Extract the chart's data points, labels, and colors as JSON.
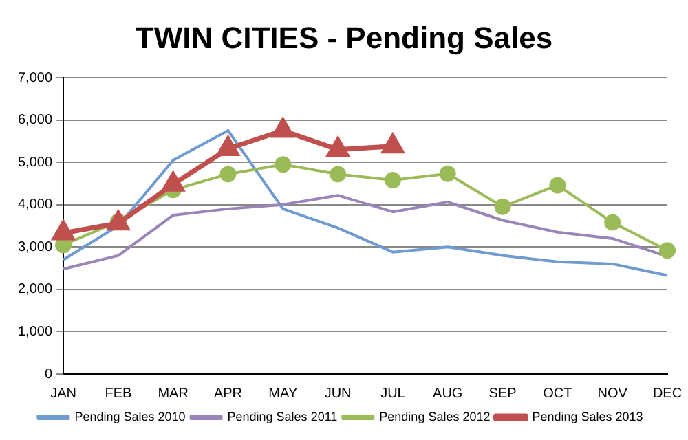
{
  "chart_data": {
    "type": "line",
    "title": "TWIN CITIES - Pending Sales",
    "categories": [
      "JAN",
      "FEB",
      "MAR",
      "APR",
      "MAY",
      "JUN",
      "JUL",
      "AUG",
      "SEP",
      "OCT",
      "NOV",
      "DEC"
    ],
    "series": [
      {
        "name": "Pending Sales 2010",
        "color": "#6f9bd1",
        "marker": "none",
        "values": [
          2700,
          3500,
          5050,
          5750,
          3900,
          3450,
          2880,
          3000,
          2800,
          2650,
          2600,
          2330
        ]
      },
      {
        "name": "Pending Sales 2011",
        "color": "#9b85b8",
        "marker": "none",
        "values": [
          2480,
          2800,
          3750,
          3900,
          4000,
          4220,
          3830,
          4060,
          3630,
          3350,
          3200,
          2780
        ]
      },
      {
        "name": "Pending Sales 2012",
        "color": "#9bbb59",
        "marker": "circle",
        "values": [
          3050,
          3600,
          4350,
          4720,
          4950,
          4720,
          4580,
          4730,
          3950,
          4460,
          3580,
          2920
        ]
      },
      {
        "name": "Pending Sales 2013",
        "color": "#c0504d",
        "marker": "triangle",
        "values": [
          3330,
          3560,
          4480,
          5320,
          5750,
          5300,
          5380,
          null,
          null,
          null,
          null,
          null
        ]
      }
    ],
    "ylim": [
      0,
      7000
    ],
    "yticks": [
      0,
      {
        "value": 1000,
        "label": "1,000"
      },
      {
        "value": 2000,
        "label": "2,000"
      },
      {
        "value": 3000,
        "label": "3,000"
      },
      {
        "value": 4000,
        "label": "4,000"
      },
      {
        "value": 5000,
        "label": "5,000"
      },
      {
        "value": 6000,
        "label": "6,000"
      },
      {
        "value": 7000,
        "label": "7,000"
      }
    ],
    "grid": "y",
    "legend": "bottom"
  }
}
